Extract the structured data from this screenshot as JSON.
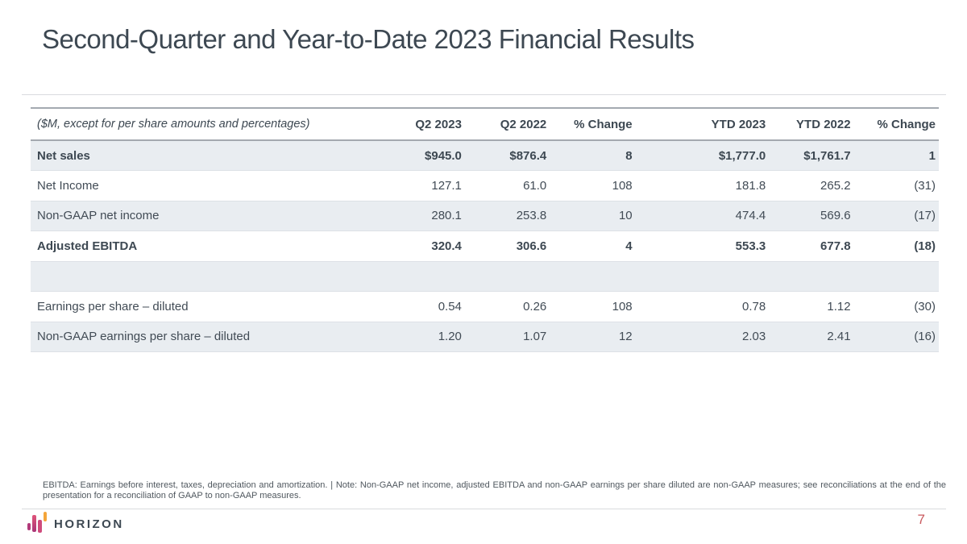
{
  "slide": {
    "title": "Second-Quarter and Year-to-Date 2023 Financial Results"
  },
  "table": {
    "unit_note": "($M, except for per share amounts and percentages)",
    "columns": [
      "Q2 2023",
      "Q2 2022",
      "% Change",
      "YTD 2023",
      "YTD 2022",
      "% Change"
    ],
    "rows": [
      {
        "label": "Net sales",
        "values": [
          "$945.0",
          "$876.4",
          "8",
          "$1,777.0",
          "$1,761.7",
          "1"
        ]
      },
      {
        "label": "Net Income",
        "values": [
          "127.1",
          "61.0",
          "108",
          "181.8",
          "265.2",
          "(31)"
        ]
      },
      {
        "label": "Non-GAAP net income",
        "values": [
          "280.1",
          "253.8",
          "10",
          "474.4",
          "569.6",
          "(17)"
        ]
      },
      {
        "label": "Adjusted EBITDA",
        "values": [
          "320.4",
          "306.6",
          "4",
          "553.3",
          "677.8",
          "(18)"
        ]
      },
      {
        "label": "",
        "values": [
          "",
          "",
          "",
          "",
          "",
          ""
        ]
      },
      {
        "label": "Earnings per share – diluted",
        "values": [
          "0.54",
          "0.26",
          "108",
          "0.78",
          "1.12",
          "(30)"
        ]
      },
      {
        "label": "Non-GAAP earnings per share – diluted",
        "values": [
          "1.20",
          "1.07",
          "12",
          "2.03",
          "2.41",
          "(16)"
        ]
      }
    ]
  },
  "footnote": "EBITDA: Earnings before interest, taxes, depreciation and amortization.  |  Note: Non-GAAP net income, adjusted EBITDA and non-GAAP earnings per share diluted are non-GAAP measures; see reconciliations at the end of the presentation for a reconciliation of GAAP to non-GAAP measures.",
  "footer": {
    "logo_text": "HORIZON",
    "page_number": "7"
  },
  "colors": {
    "text": "#3d4852",
    "row_shade": "#e9edf1",
    "accent_magenta": "#b23a7a",
    "accent_pink": "#cf4b7c",
    "accent_orange": "#f4a53a",
    "page_number": "#c9595e"
  }
}
